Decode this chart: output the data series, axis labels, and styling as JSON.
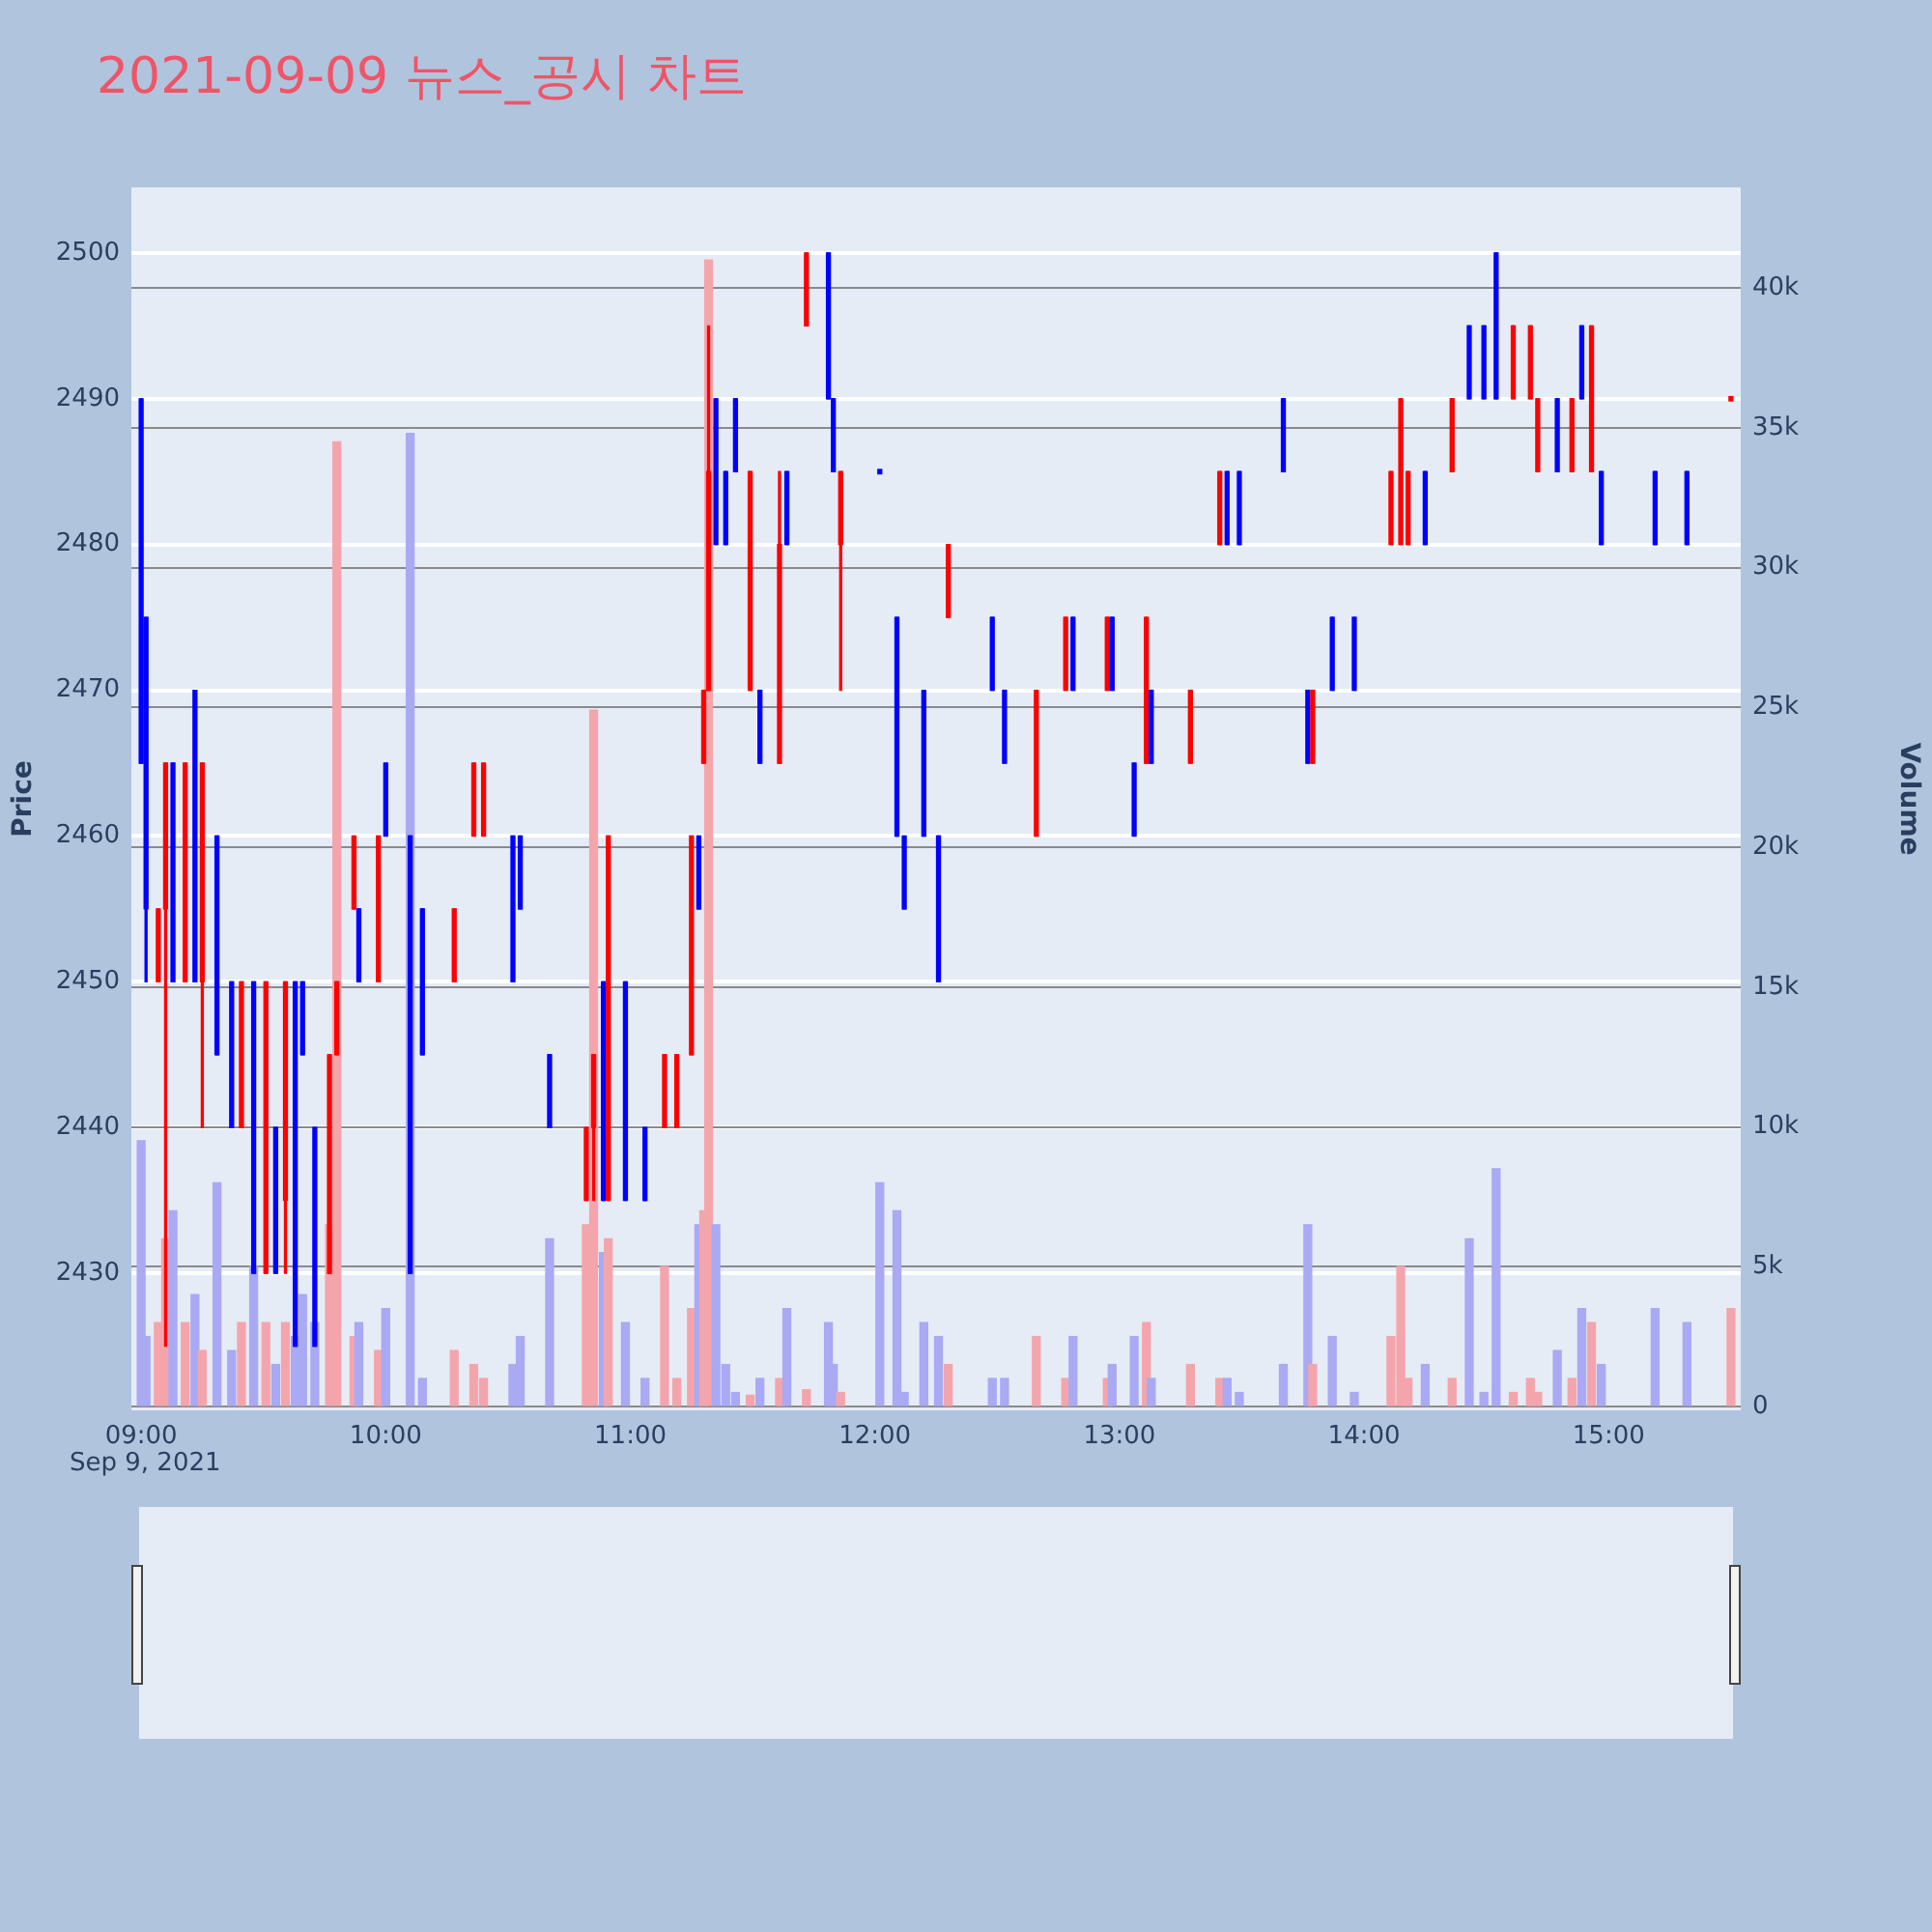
{
  "chart_data": {
    "type": "candlestick",
    "title": "2021-09-09 뉴스_공시 차트",
    "ylabel": "Price",
    "y2label": "Volume",
    "annotations": [
      "Sep 9, 2021"
    ],
    "x": [
      9.0,
      9.02,
      9.07,
      9.1,
      9.13,
      9.18,
      9.22,
      9.25,
      9.31,
      9.37,
      9.41,
      9.46,
      9.51,
      9.55,
      9.59,
      9.63,
      9.66,
      9.71,
      9.77,
      9.8,
      9.87,
      9.89,
      9.97,
      10.0,
      10.1,
      10.15,
      10.28,
      10.36,
      10.4,
      10.52,
      10.55,
      10.67,
      10.82,
      10.85,
      10.89,
      10.91,
      10.98,
      11.06,
      11.14,
      11.19,
      11.25,
      11.28,
      11.3,
      11.32,
      11.35,
      11.39,
      11.43,
      11.49,
      11.53,
      11.61,
      11.64,
      11.72,
      11.81,
      11.83,
      11.86,
      12.02,
      12.09,
      12.12,
      12.2,
      12.26,
      12.3,
      12.48,
      12.53,
      12.66,
      12.78,
      12.81,
      12.95,
      12.97,
      13.06,
      13.11,
      13.13,
      13.29,
      13.41,
      13.44,
      13.49,
      13.67,
      13.77,
      13.79,
      13.87,
      13.96,
      14.11,
      14.15,
      14.18,
      14.25,
      14.36,
      14.43,
      14.49,
      14.54,
      14.61,
      14.68,
      14.71,
      14.79,
      14.85,
      14.89,
      14.93,
      14.97,
      15.19,
      15.32,
      15.5
    ],
    "ohlc": [
      [
        2490,
        2490,
        2465,
        2465
      ],
      [
        2475,
        2475,
        2450,
        2455
      ],
      [
        2450,
        2455,
        2450,
        2455
      ],
      [
        2455,
        2465,
        2425,
        2465
      ],
      [
        2465,
        2465,
        2450,
        2450
      ],
      [
        2450,
        2465,
        2450,
        2465
      ],
      [
        2470,
        2470,
        2450,
        2450
      ],
      [
        2450,
        2465,
        2440,
        2465
      ],
      [
        2460,
        2460,
        2445,
        2445
      ],
      [
        2450,
        2450,
        2440,
        2440
      ],
      [
        2440,
        2450,
        2440,
        2450
      ],
      [
        2450,
        2450,
        2430,
        2430
      ],
      [
        2430,
        2450,
        2430,
        2450
      ],
      [
        2440,
        2440,
        2430,
        2430
      ],
      [
        2435,
        2450,
        2430,
        2450
      ],
      [
        2450,
        2450,
        2425,
        2425
      ],
      [
        2450,
        2450,
        2445,
        2445
      ],
      [
        2440,
        2440,
        2425,
        2425
      ],
      [
        2430,
        2445,
        2430,
        2445
      ],
      [
        2445,
        2450,
        2445,
        2450
      ],
      [
        2455,
        2460,
        2455,
        2460
      ],
      [
        2455,
        2455,
        2450,
        2450
      ],
      [
        2450,
        2460,
        2450,
        2460
      ],
      [
        2465,
        2465,
        2460,
        2460
      ],
      [
        2460,
        2460,
        2430,
        2430
      ],
      [
        2455,
        2455,
        2445,
        2445
      ],
      [
        2450,
        2455,
        2450,
        2455
      ],
      [
        2460,
        2465,
        2460,
        2465
      ],
      [
        2460,
        2465,
        2460,
        2465
      ],
      [
        2460,
        2460,
        2450,
        2450
      ],
      [
        2460,
        2460,
        2455,
        2455
      ],
      [
        2445,
        2445,
        2440,
        2440
      ],
      [
        2435,
        2440,
        2435,
        2440
      ],
      [
        2440,
        2445,
        2435,
        2445
      ],
      [
        2450,
        2450,
        2435,
        2435
      ],
      [
        2435,
        2460,
        2435,
        2460
      ],
      [
        2450,
        2450,
        2435,
        2435
      ],
      [
        2440,
        2440,
        2435,
        2435
      ],
      [
        2440,
        2445,
        2440,
        2445
      ],
      [
        2440,
        2445,
        2440,
        2445
      ],
      [
        2445,
        2460,
        2445,
        2460
      ],
      [
        2460,
        2460,
        2455,
        2455
      ],
      [
        2465,
        2470,
        2465,
        2470
      ],
      [
        2470,
        2495,
        2470,
        2485
      ],
      [
        2490,
        2490,
        2480,
        2480
      ],
      [
        2485,
        2485,
        2480,
        2480
      ],
      [
        2490,
        2490,
        2485,
        2485
      ],
      [
        2470,
        2485,
        2470,
        2485
      ],
      [
        2470,
        2470,
        2465,
        2465
      ],
      [
        2465,
        2485,
        2465,
        2480
      ],
      [
        2485,
        2485,
        2480,
        2480
      ],
      [
        2495,
        2500,
        2495,
        2500
      ],
      [
        2500,
        2500,
        2490,
        2490
      ],
      [
        2490,
        2490,
        2485,
        2485
      ],
      [
        2480,
        2485,
        2470,
        2485
      ],
      [
        2485,
        2485,
        2485,
        2485
      ],
      [
        2475,
        2475,
        2460,
        2460
      ],
      [
        2460,
        2460,
        2455,
        2455
      ],
      [
        2470,
        2470,
        2460,
        2460
      ],
      [
        2460,
        2460,
        2450,
        2450
      ],
      [
        2475,
        2480,
        2475,
        2480
      ],
      [
        2475,
        2475,
        2470,
        2470
      ],
      [
        2470,
        2470,
        2465,
        2465
      ],
      [
        2460,
        2470,
        2460,
        2470
      ],
      [
        2470,
        2475,
        2470,
        2475
      ],
      [
        2475,
        2475,
        2470,
        2470
      ],
      [
        2470,
        2475,
        2470,
        2475
      ],
      [
        2475,
        2475,
        2470,
        2470
      ],
      [
        2465,
        2465,
        2460,
        2460
      ],
      [
        2465,
        2475,
        2465,
        2475
      ],
      [
        2470,
        2470,
        2465,
        2465
      ],
      [
        2465,
        2470,
        2465,
        2470
      ],
      [
        2480,
        2485,
        2480,
        2485
      ],
      [
        2485,
        2485,
        2480,
        2480
      ],
      [
        2485,
        2485,
        2480,
        2480
      ],
      [
        2490,
        2490,
        2485,
        2485
      ],
      [
        2470,
        2470,
        2465,
        2465
      ],
      [
        2465,
        2470,
        2465,
        2470
      ],
      [
        2475,
        2475,
        2470,
        2470
      ],
      [
        2475,
        2475,
        2470,
        2470
      ],
      [
        2480,
        2485,
        2480,
        2485
      ],
      [
        2480,
        2490,
        2480,
        2490
      ],
      [
        2480,
        2485,
        2480,
        2485
      ],
      [
        2485,
        2485,
        2480,
        2480
      ],
      [
        2485,
        2490,
        2485,
        2490
      ],
      [
        2495,
        2495,
        2490,
        2490
      ],
      [
        2495,
        2495,
        2490,
        2490
      ],
      [
        2500,
        2500,
        2490,
        2490
      ],
      [
        2490,
        2495,
        2490,
        2495
      ],
      [
        2490,
        2495,
        2490,
        2495
      ],
      [
        2485,
        2490,
        2485,
        2490
      ],
      [
        2490,
        2490,
        2485,
        2485
      ],
      [
        2485,
        2490,
        2485,
        2490
      ],
      [
        2495,
        2495,
        2490,
        2490
      ],
      [
        2485,
        2495,
        2485,
        2495
      ],
      [
        2485,
        2485,
        2480,
        2480
      ],
      [
        2485,
        2485,
        2480,
        2480
      ],
      [
        2485,
        2485,
        2480,
        2480
      ],
      [
        2490,
        2490,
        2490,
        2490
      ]
    ],
    "colors": [
      "#0000ff",
      "#0000ff",
      "#ff0000",
      "#ff0000",
      "#0000ff",
      "#ff0000",
      "#0000ff",
      "#ff0000",
      "#0000ff",
      "#0000ff",
      "#ff0000",
      "#0000ff",
      "#ff0000",
      "#0000ff",
      "#ff0000",
      "#0000ff",
      "#0000ff",
      "#0000ff",
      "#ff0000",
      "#ff0000",
      "#ff0000",
      "#0000ff",
      "#ff0000",
      "#0000ff",
      "#0000ff",
      "#0000ff",
      "#ff0000",
      "#ff0000",
      "#ff0000",
      "#0000ff",
      "#0000ff",
      "#0000ff",
      "#ff0000",
      "#ff0000",
      "#0000ff",
      "#ff0000",
      "#0000ff",
      "#0000ff",
      "#ff0000",
      "#ff0000",
      "#ff0000",
      "#0000ff",
      "#ff0000",
      "#ff0000",
      "#0000ff",
      "#0000ff",
      "#0000ff",
      "#ff0000",
      "#0000ff",
      "#ff0000",
      "#0000ff",
      "#ff0000",
      "#0000ff",
      "#0000ff",
      "#ff0000",
      "#0000ff",
      "#0000ff",
      "#0000ff",
      "#0000ff",
      "#0000ff",
      "#ff0000",
      "#0000ff",
      "#0000ff",
      "#ff0000",
      "#ff0000",
      "#0000ff",
      "#ff0000",
      "#0000ff",
      "#0000ff",
      "#ff0000",
      "#0000ff",
      "#ff0000",
      "#ff0000",
      "#0000ff",
      "#0000ff",
      "#0000ff",
      "#0000ff",
      "#ff0000",
      "#0000ff",
      "#0000ff",
      "#ff0000",
      "#ff0000",
      "#ff0000",
      "#0000ff",
      "#ff0000",
      "#0000ff",
      "#0000ff",
      "#0000ff",
      "#ff0000",
      "#ff0000",
      "#ff0000",
      "#0000ff",
      "#ff0000",
      "#0000ff",
      "#ff0000",
      "#0000ff",
      "#0000ff",
      "#0000ff",
      "#ff0000"
    ],
    "series": [
      {
        "type": "bar",
        "axis": "y2",
        "values": [
          9500,
          2500,
          3000,
          6000,
          7000,
          3000,
          4000,
          2000,
          8000,
          2000,
          3000,
          5000,
          3000,
          1500,
          3000,
          2500,
          4000,
          3000,
          6500,
          34500,
          2500,
          3000,
          2000,
          3500,
          34800,
          1000,
          2000,
          1500,
          1000,
          1500,
          2500,
          6000,
          6500,
          24900,
          5500,
          6000,
          3000,
          1000,
          5000,
          1000,
          3500,
          6500,
          7000,
          41000,
          6500,
          1500,
          500,
          400,
          1000,
          1000,
          3500,
          600,
          3000,
          1500,
          500,
          8000,
          7000,
          500,
          3000,
          2500,
          1500,
          1000,
          1000,
          2500,
          1000,
          2500,
          1000,
          1500,
          2500,
          3000,
          1000,
          1500,
          1000,
          1000,
          500,
          1500,
          6500,
          1500,
          2500,
          500,
          2500,
          5000,
          1000,
          1500,
          1000,
          6000,
          500,
          8500,
          500,
          1000,
          500,
          2000,
          1000,
          3500,
          3000,
          1500,
          3500,
          3000,
          3500
        ],
        "colors": [
          "#a9a9f4",
          "#a9a9f4",
          "#f4a5ac",
          "#f4a5ac",
          "#a9a9f4",
          "#f4a5ac",
          "#a9a9f4",
          "#f4a5ac",
          "#a9a9f4",
          "#a9a9f4",
          "#f4a5ac",
          "#a9a9f4",
          "#f4a5ac",
          "#a9a9f4",
          "#f4a5ac",
          "#a9a9f4",
          "#a9a9f4",
          "#a9a9f4",
          "#f4a5ac",
          "#f4a5ac",
          "#f4a5ac",
          "#a9a9f4",
          "#f4a5ac",
          "#a9a9f4",
          "#a9a9f4",
          "#a9a9f4",
          "#f4a5ac",
          "#f4a5ac",
          "#f4a5ac",
          "#a9a9f4",
          "#a9a9f4",
          "#a9a9f4",
          "#f4a5ac",
          "#f4a5ac",
          "#a9a9f4",
          "#f4a5ac",
          "#a9a9f4",
          "#a9a9f4",
          "#f4a5ac",
          "#f4a5ac",
          "#f4a5ac",
          "#a9a9f4",
          "#f4a5ac",
          "#f4a5ac",
          "#a9a9f4",
          "#a9a9f4",
          "#a9a9f4",
          "#f4a5ac",
          "#a9a9f4",
          "#f4a5ac",
          "#a9a9f4",
          "#f4a5ac",
          "#a9a9f4",
          "#a9a9f4",
          "#f4a5ac",
          "#a9a9f4",
          "#a9a9f4",
          "#a9a9f4",
          "#a9a9f4",
          "#a9a9f4",
          "#f4a5ac",
          "#a9a9f4",
          "#a9a9f4",
          "#f4a5ac",
          "#f4a5ac",
          "#a9a9f4",
          "#f4a5ac",
          "#a9a9f4",
          "#a9a9f4",
          "#f4a5ac",
          "#a9a9f4",
          "#f4a5ac",
          "#f4a5ac",
          "#a9a9f4",
          "#a9a9f4",
          "#a9a9f4",
          "#a9a9f4",
          "#f4a5ac",
          "#a9a9f4",
          "#a9a9f4",
          "#f4a5ac",
          "#f4a5ac",
          "#f4a5ac",
          "#a9a9f4",
          "#f4a5ac",
          "#a9a9f4",
          "#a9a9f4",
          "#a9a9f4",
          "#f4a5ac",
          "#f4a5ac",
          "#f4a5ac",
          "#a9a9f4",
          "#f4a5ac",
          "#a9a9f4",
          "#f4a5ac",
          "#a9a9f4",
          "#a9a9f4",
          "#a9a9f4",
          "#f4a5ac"
        ]
      }
    ],
    "xlim": [
      8.96,
      15.54
    ],
    "xticks": [
      {
        "value": 9,
        "label": "09:00"
      },
      {
        "value": 10,
        "label": "10:00"
      },
      {
        "value": 11,
        "label": "11:00"
      },
      {
        "value": 12,
        "label": "12:00"
      },
      {
        "value": 13,
        "label": "13:00"
      },
      {
        "value": 14,
        "label": "14:00"
      },
      {
        "value": 15,
        "label": "15:00"
      }
    ],
    "ylim": [
      2420.6,
      2504.5
    ],
    "yticks": [
      2430,
      2440,
      2450,
      2460,
      2470,
      2480,
      2490,
      2500
    ],
    "y2lim": [
      -140,
      43600
    ],
    "y2ticks": [
      {
        "value": 0,
        "label": "0"
      },
      {
        "value": 5000,
        "label": "5k"
      },
      {
        "value": 10000,
        "label": "10k"
      },
      {
        "value": 15000,
        "label": "15k"
      },
      {
        "value": 20000,
        "label": "20k"
      },
      {
        "value": 25000,
        "label": "25k"
      },
      {
        "value": 30000,
        "label": "30k"
      },
      {
        "value": 35000,
        "label": "35k"
      },
      {
        "value": 40000,
        "label": "40k"
      }
    ],
    "grid": "y"
  }
}
